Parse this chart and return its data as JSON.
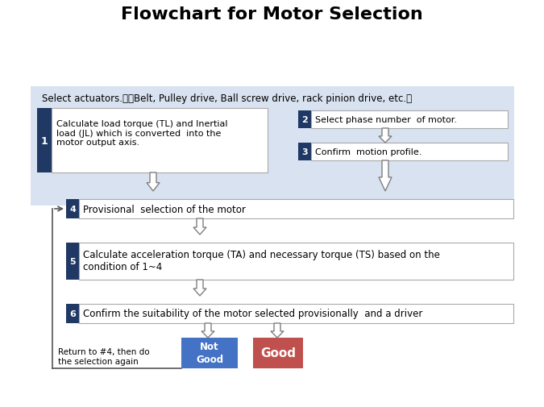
{
  "title": "Flowchart for Motor Selection",
  "title_fontsize": 16,
  "title_fontweight": "bold",
  "bg_color": "#ffffff",
  "light_blue_bg": "#d9e2f0",
  "dark_blue": "#1f3864",
  "red_color": "#c0504d",
  "blue_button": "#4472c4",
  "box_border_color": "#aaaaaa",
  "select_actuators_text": "Select actuators.　（Belt, Pulley drive, Ball screw drive, rack pinion drive, etc.）",
  "step1_num": "1",
  "step1_text": "Calculate load torque (TL) and Inertial\nload (JL) which is converted  into the\nmotor output axis.",
  "step2_num": "2",
  "step2_text": "Select phase number  of motor.",
  "step3_num": "3",
  "step3_text": "Confirm  motion profile.",
  "step4_num": "4",
  "step4_text": "Provisional  selection of the motor",
  "step5_num": "5",
  "step5_text": "Calculate acceleration torque (TA) and necessary torque (TS) based on the\ncondition of 1~4",
  "step6_num": "6",
  "step6_text": "Confirm the suitability of the motor selected provisionally  and a driver",
  "not_good_text": "Not\nGood",
  "good_text": "Good",
  "return_text": "Return to #4, then do\nthe selection again",
  "arrow_color": "#7f7f7f",
  "line_color": "#555555"
}
